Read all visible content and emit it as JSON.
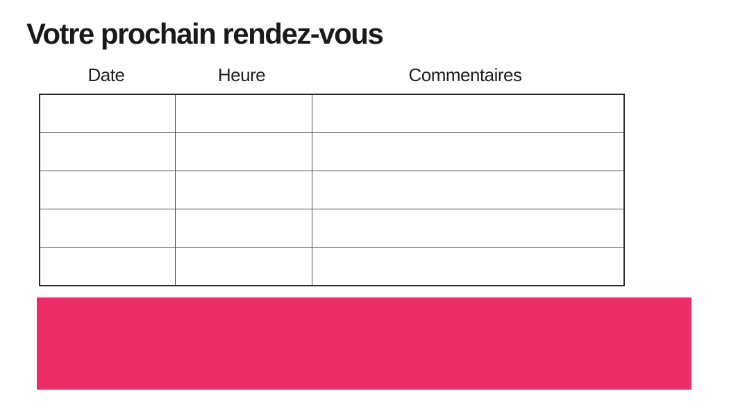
{
  "title": "Votre prochain rendez-vous",
  "table": {
    "headers": [
      "Date",
      "Heure",
      "Commentaires"
    ],
    "rows": [
      [
        "",
        "",
        ""
      ],
      [
        "",
        "",
        ""
      ],
      [
        "",
        "",
        ""
      ],
      [
        "",
        "",
        ""
      ],
      [
        "",
        "",
        ""
      ]
    ]
  },
  "highlight": {
    "color": "#ED2D68",
    "text": ""
  }
}
